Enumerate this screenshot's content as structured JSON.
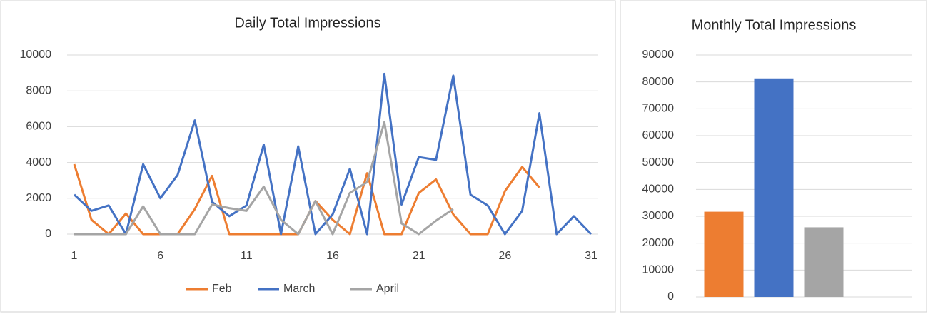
{
  "chart_data": [
    {
      "type": "line",
      "title": "Daily Total Impressions",
      "x": [
        1,
        2,
        3,
        4,
        5,
        6,
        7,
        8,
        9,
        10,
        11,
        12,
        13,
        14,
        15,
        16,
        17,
        18,
        19,
        20,
        21,
        22,
        23,
        24,
        25,
        26,
        27,
        28,
        29,
        30,
        31
      ],
      "series": [
        {
          "name": "Feb",
          "color": "#ed7d31",
          "values": [
            3900,
            800,
            0,
            1150,
            0,
            0,
            0,
            1400,
            3250,
            0,
            0,
            0,
            0,
            0,
            1850,
            800,
            0,
            3400,
            0,
            0,
            2300,
            3050,
            1100,
            0,
            0,
            2400,
            3750,
            2600,
            null,
            null,
            null
          ]
        },
        {
          "name": "March",
          "color": "#4472c4",
          "values": [
            2200,
            1300,
            1600,
            0,
            3900,
            2000,
            3300,
            6350,
            1800,
            1000,
            1600,
            5000,
            0,
            4900,
            0,
            1100,
            3650,
            0,
            8950,
            1650,
            4300,
            4150,
            8850,
            2200,
            1600,
            0,
            1300,
            6750,
            0,
            1000,
            0
          ]
        },
        {
          "name": "April",
          "color": "#a5a5a5",
          "values": [
            0,
            0,
            0,
            0,
            1550,
            0,
            0,
            0,
            1650,
            1450,
            1300,
            2650,
            800,
            0,
            1850,
            0,
            2300,
            2900,
            6250,
            600,
            0,
            750,
            1400,
            null,
            null,
            null,
            null,
            null,
            null,
            null,
            null
          ]
        }
      ],
      "xlim": [
        1,
        31
      ],
      "xticks": [
        1,
        6,
        11,
        16,
        21,
        26,
        31
      ],
      "ylim": [
        0,
        10000
      ],
      "yticks": [
        0,
        2000,
        4000,
        6000,
        8000,
        10000
      ],
      "grid": true,
      "legend": "bottom"
    },
    {
      "type": "bar",
      "title": "Monthly Total Impressions",
      "categories": [
        null,
        null,
        null
      ],
      "values": [
        31700,
        81300,
        25900
      ],
      "colors": [
        "#ed7d31",
        "#4472c4",
        "#a5a5a5"
      ],
      "ylim": [
        0,
        90000
      ],
      "yticks": [
        0,
        10000,
        20000,
        30000,
        40000,
        50000,
        60000,
        70000,
        80000,
        90000
      ],
      "grid": true
    }
  ]
}
